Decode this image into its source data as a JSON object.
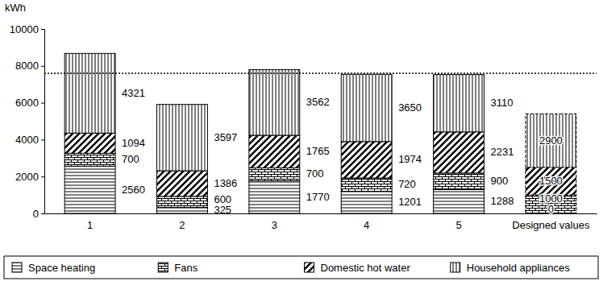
{
  "chart_data": {
    "type": "bar",
    "stacked": true,
    "data_labels": true,
    "legend": "bottom",
    "grid": false,
    "ylabel": "kWh",
    "categories": [
      "1",
      "2",
      "3",
      "4",
      "5",
      "Designed values"
    ],
    "series": [
      {
        "name": "Space heating",
        "color": "#000000",
        "values": [
          2560,
          325,
          1770,
          1201,
          1288,
          0
        ]
      },
      {
        "name": "Fans",
        "color": "#000000",
        "values": [
          700,
          600,
          700,
          720,
          900,
          1000
        ]
      },
      {
        "name": "Domestic hot water",
        "color": "#000000",
        "values": [
          1094,
          1386,
          1765,
          1974,
          2231,
          1500
        ]
      },
      {
        "name": "Household appliances",
        "color": "#000000",
        "values": [
          4321,
          3597,
          3562,
          3650,
          3110,
          2900
        ]
      }
    ],
    "reference_line": 7600,
    "ylim": [
      0,
      10000
    ],
    "yticks": [
      0,
      2000,
      4000,
      6000,
      8000,
      10000
    ]
  }
}
